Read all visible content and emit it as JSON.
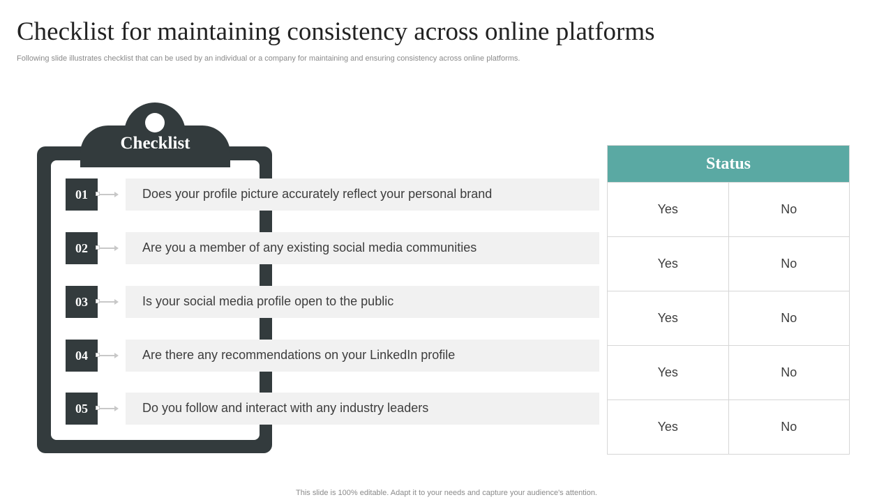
{
  "slide": {
    "title": "Checklist for maintaining consistency across online platforms",
    "subtitle": "Following slide illustrates checklist that can be used by an individual or a company for maintaining and ensuring consistency across online platforms.",
    "footer": "This slide is 100% editable. Adapt it to your needs and capture your audience's attention."
  },
  "checklist": {
    "title": "Checklist",
    "items": [
      {
        "number": "01",
        "question": "Does your profile picture accurately reflect your personal brand"
      },
      {
        "number": "02",
        "question": "Are you a member of any existing social media communities"
      },
      {
        "number": "03",
        "question": "Is your social media profile open to the public"
      },
      {
        "number": "04",
        "question": "Are there any recommendations on your LinkedIn profile"
      },
      {
        "number": "05",
        "question": "Do you follow and interact with any industry leaders"
      }
    ]
  },
  "status": {
    "header": "Status",
    "rows": [
      {
        "yes": "Yes",
        "no": "No"
      },
      {
        "yes": "Yes",
        "no": "No"
      },
      {
        "yes": "Yes",
        "no": "No"
      },
      {
        "yes": "Yes",
        "no": "No"
      },
      {
        "yes": "Yes",
        "no": "No"
      }
    ]
  },
  "colors": {
    "dark": "#333b3d",
    "accent": "#5aa9a3",
    "item_background": "#f1f1f1"
  }
}
